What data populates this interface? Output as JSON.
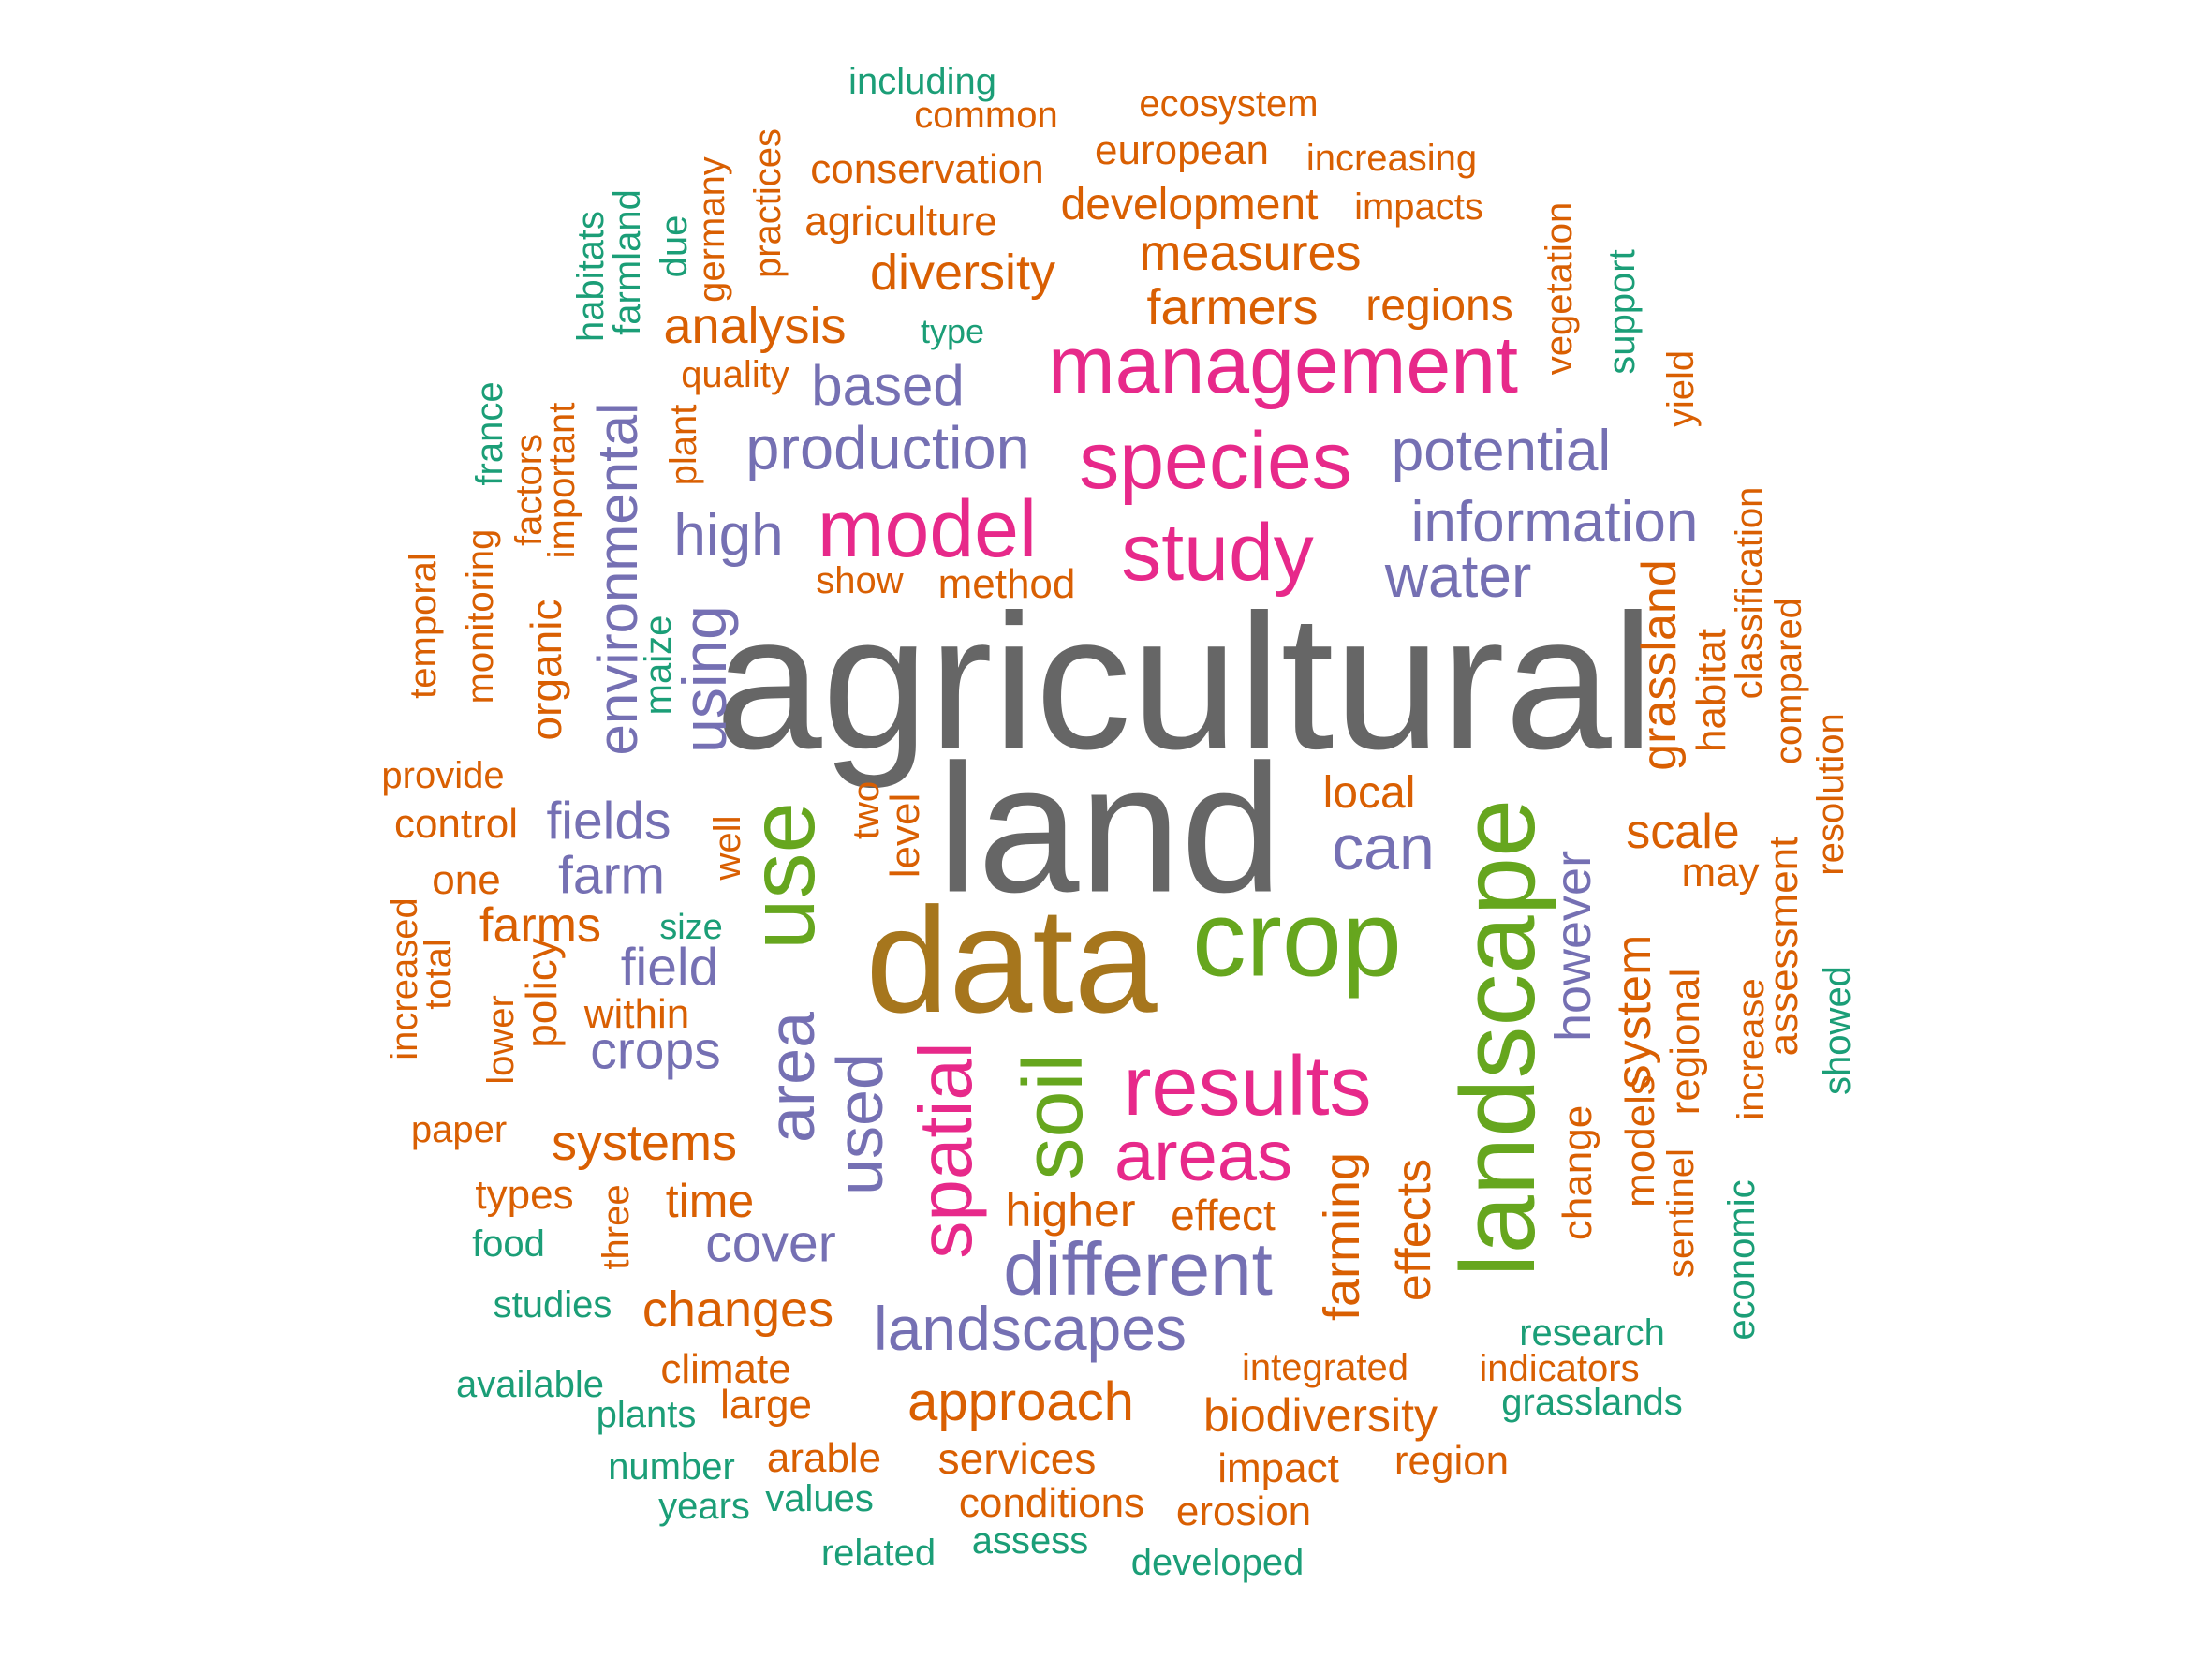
{
  "palette": {
    "gray": "#666666",
    "gold": "#A6761D",
    "green": "#66A61E",
    "magenta": "#E7298A",
    "purple": "#7570B3",
    "orange": "#D95F02",
    "teal": "#1B9E77"
  },
  "words": [
    {
      "text": "agricultural",
      "color": "gray",
      "vertical": false
    },
    {
      "text": "land",
      "color": "gray",
      "vertical": false
    },
    {
      "text": "data",
      "color": "gold",
      "vertical": false
    },
    {
      "text": "crop",
      "color": "green",
      "vertical": false
    },
    {
      "text": "use",
      "color": "green",
      "vertical": true
    },
    {
      "text": "landscape",
      "color": "green",
      "vertical": true
    },
    {
      "text": "soil",
      "color": "green",
      "vertical": true
    },
    {
      "text": "management",
      "color": "magenta",
      "vertical": false
    },
    {
      "text": "species",
      "color": "magenta",
      "vertical": false
    },
    {
      "text": "study",
      "color": "magenta",
      "vertical": false
    },
    {
      "text": "model",
      "color": "magenta",
      "vertical": false
    },
    {
      "text": "results",
      "color": "magenta",
      "vertical": false
    },
    {
      "text": "areas",
      "color": "magenta",
      "vertical": false
    },
    {
      "text": "spatial",
      "color": "magenta",
      "vertical": true
    },
    {
      "text": "production",
      "color": "purple",
      "vertical": false
    },
    {
      "text": "based",
      "color": "purple",
      "vertical": false
    },
    {
      "text": "potential",
      "color": "purple",
      "vertical": false
    },
    {
      "text": "information",
      "color": "purple",
      "vertical": false
    },
    {
      "text": "high",
      "color": "purple",
      "vertical": false
    },
    {
      "text": "water",
      "color": "purple",
      "vertical": false
    },
    {
      "text": "can",
      "color": "purple",
      "vertical": false
    },
    {
      "text": "fields",
      "color": "purple",
      "vertical": false
    },
    {
      "text": "farm",
      "color": "purple",
      "vertical": false
    },
    {
      "text": "field",
      "color": "purple",
      "vertical": false
    },
    {
      "text": "crops",
      "color": "purple",
      "vertical": false
    },
    {
      "text": "cover",
      "color": "purple",
      "vertical": false
    },
    {
      "text": "different",
      "color": "purple",
      "vertical": false
    },
    {
      "text": "landscapes",
      "color": "purple",
      "vertical": false
    },
    {
      "text": "using",
      "color": "purple",
      "vertical": true
    },
    {
      "text": "environmental",
      "color": "purple",
      "vertical": true
    },
    {
      "text": "area",
      "color": "purple",
      "vertical": true
    },
    {
      "text": "used",
      "color": "purple",
      "vertical": true
    },
    {
      "text": "however",
      "color": "purple",
      "vertical": true
    },
    {
      "text": "including",
      "color": "teal",
      "vertical": false
    },
    {
      "text": "common",
      "color": "orange",
      "vertical": false
    },
    {
      "text": "ecosystem",
      "color": "orange",
      "vertical": false
    },
    {
      "text": "european",
      "color": "orange",
      "vertical": false
    },
    {
      "text": "increasing",
      "color": "orange",
      "vertical": false
    },
    {
      "text": "conservation",
      "color": "orange",
      "vertical": false
    },
    {
      "text": "development",
      "color": "orange",
      "vertical": false
    },
    {
      "text": "impacts",
      "color": "orange",
      "vertical": false
    },
    {
      "text": "agriculture",
      "color": "orange",
      "vertical": false
    },
    {
      "text": "measures",
      "color": "orange",
      "vertical": false
    },
    {
      "text": "diversity",
      "color": "orange",
      "vertical": false
    },
    {
      "text": "farmers",
      "color": "orange",
      "vertical": false
    },
    {
      "text": "regions",
      "color": "orange",
      "vertical": false
    },
    {
      "text": "analysis",
      "color": "orange",
      "vertical": false
    },
    {
      "text": "type",
      "color": "teal",
      "vertical": false
    },
    {
      "text": "quality",
      "color": "orange",
      "vertical": false
    },
    {
      "text": "show",
      "color": "orange",
      "vertical": false
    },
    {
      "text": "method",
      "color": "orange",
      "vertical": false
    },
    {
      "text": "local",
      "color": "orange",
      "vertical": false
    },
    {
      "text": "scale",
      "color": "orange",
      "vertical": false
    },
    {
      "text": "may",
      "color": "orange",
      "vertical": false
    },
    {
      "text": "provide",
      "color": "orange",
      "vertical": false
    },
    {
      "text": "control",
      "color": "orange",
      "vertical": false
    },
    {
      "text": "one",
      "color": "orange",
      "vertical": false
    },
    {
      "text": "farms",
      "color": "orange",
      "vertical": false
    },
    {
      "text": "size",
      "color": "teal",
      "vertical": false
    },
    {
      "text": "within",
      "color": "orange",
      "vertical": false
    },
    {
      "text": "paper",
      "color": "orange",
      "vertical": false
    },
    {
      "text": "systems",
      "color": "orange",
      "vertical": false
    },
    {
      "text": "types",
      "color": "orange",
      "vertical": false
    },
    {
      "text": "time",
      "color": "orange",
      "vertical": false
    },
    {
      "text": "higher",
      "color": "orange",
      "vertical": false
    },
    {
      "text": "effect",
      "color": "orange",
      "vertical": false
    },
    {
      "text": "food",
      "color": "teal",
      "vertical": false
    },
    {
      "text": "studies",
      "color": "teal",
      "vertical": false
    },
    {
      "text": "changes",
      "color": "orange",
      "vertical": false
    },
    {
      "text": "research",
      "color": "teal",
      "vertical": false
    },
    {
      "text": "available",
      "color": "teal",
      "vertical": false
    },
    {
      "text": "climate",
      "color": "orange",
      "vertical": false
    },
    {
      "text": "integrated",
      "color": "orange",
      "vertical": false
    },
    {
      "text": "indicators",
      "color": "orange",
      "vertical": false
    },
    {
      "text": "plants",
      "color": "teal",
      "vertical": false
    },
    {
      "text": "large",
      "color": "orange",
      "vertical": false
    },
    {
      "text": "approach",
      "color": "orange",
      "vertical": false
    },
    {
      "text": "biodiversity",
      "color": "orange",
      "vertical": false
    },
    {
      "text": "grasslands",
      "color": "teal",
      "vertical": false
    },
    {
      "text": "number",
      "color": "teal",
      "vertical": false
    },
    {
      "text": "arable",
      "color": "orange",
      "vertical": false
    },
    {
      "text": "services",
      "color": "orange",
      "vertical": false
    },
    {
      "text": "impact",
      "color": "orange",
      "vertical": false
    },
    {
      "text": "region",
      "color": "orange",
      "vertical": false
    },
    {
      "text": "years",
      "color": "teal",
      "vertical": false
    },
    {
      "text": "values",
      "color": "teal",
      "vertical": false
    },
    {
      "text": "conditions",
      "color": "orange",
      "vertical": false
    },
    {
      "text": "erosion",
      "color": "orange",
      "vertical": false
    },
    {
      "text": "related",
      "color": "teal",
      "vertical": false
    },
    {
      "text": "assess",
      "color": "teal",
      "vertical": false
    },
    {
      "text": "developed",
      "color": "teal",
      "vertical": false
    },
    {
      "text": "habitats",
      "color": "teal",
      "vertical": true
    },
    {
      "text": "farmland",
      "color": "teal",
      "vertical": true
    },
    {
      "text": "due",
      "color": "teal",
      "vertical": true
    },
    {
      "text": "germany",
      "color": "orange",
      "vertical": true
    },
    {
      "text": "practices",
      "color": "orange",
      "vertical": true
    },
    {
      "text": "vegetation",
      "color": "orange",
      "vertical": true
    },
    {
      "text": "support",
      "color": "teal",
      "vertical": true
    },
    {
      "text": "yield",
      "color": "orange",
      "vertical": true
    },
    {
      "text": "france",
      "color": "teal",
      "vertical": true
    },
    {
      "text": "factors",
      "color": "orange",
      "vertical": true
    },
    {
      "text": "important",
      "color": "orange",
      "vertical": true
    },
    {
      "text": "plant",
      "color": "orange",
      "vertical": true
    },
    {
      "text": "monitoring",
      "color": "orange",
      "vertical": true
    },
    {
      "text": "temporal",
      "color": "orange",
      "vertical": true
    },
    {
      "text": "organic",
      "color": "orange",
      "vertical": true
    },
    {
      "text": "maize",
      "color": "teal",
      "vertical": true
    },
    {
      "text": "two",
      "color": "orange",
      "vertical": true
    },
    {
      "text": "level",
      "color": "orange",
      "vertical": true
    },
    {
      "text": "well",
      "color": "orange",
      "vertical": true
    },
    {
      "text": "increased",
      "color": "orange",
      "vertical": true
    },
    {
      "text": "total",
      "color": "orange",
      "vertical": true
    },
    {
      "text": "lower",
      "color": "orange",
      "vertical": true
    },
    {
      "text": "policy",
      "color": "orange",
      "vertical": true
    },
    {
      "text": "three",
      "color": "orange",
      "vertical": true
    },
    {
      "text": "farming",
      "color": "orange",
      "vertical": true
    },
    {
      "text": "effects",
      "color": "orange",
      "vertical": true
    },
    {
      "text": "change",
      "color": "orange",
      "vertical": true
    },
    {
      "text": "models",
      "color": "orange",
      "vertical": true
    },
    {
      "text": "system",
      "color": "orange",
      "vertical": true
    },
    {
      "text": "sentinel",
      "color": "orange",
      "vertical": true
    },
    {
      "text": "regional",
      "color": "orange",
      "vertical": true
    },
    {
      "text": "grassland",
      "color": "orange",
      "vertical": true
    },
    {
      "text": "habitat",
      "color": "orange",
      "vertical": true
    },
    {
      "text": "classification",
      "color": "orange",
      "vertical": true
    },
    {
      "text": "compared",
      "color": "orange",
      "vertical": true
    },
    {
      "text": "resolution",
      "color": "orange",
      "vertical": true
    },
    {
      "text": "assessment",
      "color": "orange",
      "vertical": true
    },
    {
      "text": "increase",
      "color": "orange",
      "vertical": true
    },
    {
      "text": "showed",
      "color": "teal",
      "vertical": true
    },
    {
      "text": "economic",
      "color": "teal",
      "vertical": true
    }
  ]
}
